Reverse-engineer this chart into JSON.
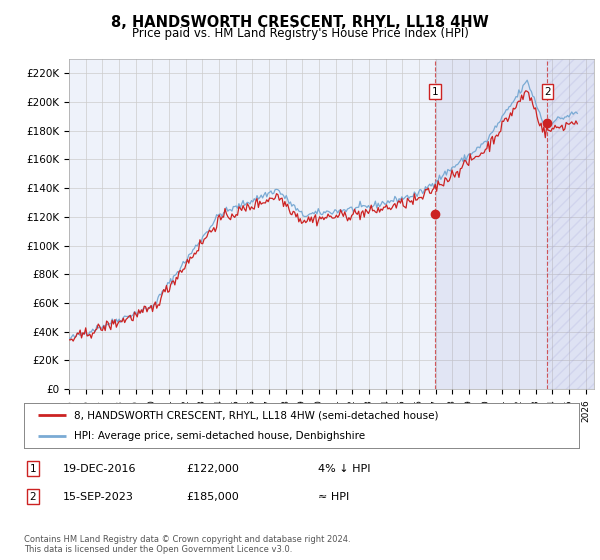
{
  "title": "8, HANDSWORTH CRESCENT, RHYL, LL18 4HW",
  "subtitle": "Price paid vs. HM Land Registry's House Price Index (HPI)",
  "ylabel_ticks": [
    "£0",
    "£20K",
    "£40K",
    "£60K",
    "£80K",
    "£100K",
    "£120K",
    "£140K",
    "£160K",
    "£180K",
    "£200K",
    "£220K"
  ],
  "ytick_values": [
    0,
    20000,
    40000,
    60000,
    80000,
    100000,
    120000,
    140000,
    160000,
    180000,
    200000,
    220000
  ],
  "ylim": [
    0,
    230000
  ],
  "xlim_start": 1995.0,
  "xlim_end": 2026.5,
  "hpi_color": "#7aaad4",
  "price_color": "#cc2222",
  "transaction1_date": 2016.96,
  "transaction1_price": 122000,
  "transaction2_date": 2023.71,
  "transaction2_price": 185000,
  "legend_label1": "8, HANDSWORTH CRESCENT, RHYL, LL18 4HW (semi-detached house)",
  "legend_label2": "HPI: Average price, semi-detached house, Denbighshire",
  "annotation1_label": "1",
  "annotation1_date_str": "19-DEC-2016",
  "annotation1_price_str": "£122,000",
  "annotation1_rel": "4% ↓ HPI",
  "annotation2_label": "2",
  "annotation2_date_str": "15-SEP-2023",
  "annotation2_price_str": "£185,000",
  "annotation2_rel": "≈ HPI",
  "footer": "Contains HM Land Registry data © Crown copyright and database right 2024.\nThis data is licensed under the Open Government Licence v3.0.",
  "bg_color": "#ffffff",
  "plot_bg_color": "#eef2fa",
  "grid_color": "#cccccc"
}
